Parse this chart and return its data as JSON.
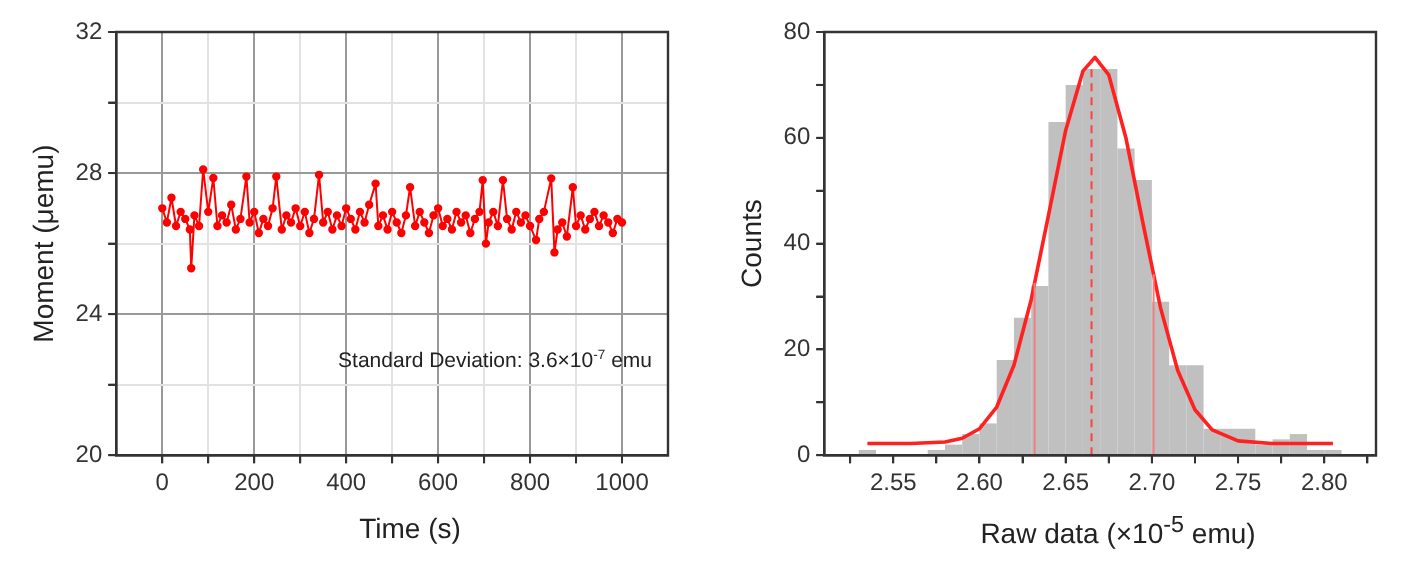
{
  "chart_data": [
    {
      "type": "line",
      "xlabel": "Time (s)",
      "ylabel": "Moment (μemu)",
      "annotations": [
        "Standard Deviation: 3.6×10$^{-7}$ emu"
      ],
      "xlim": [
        -100,
        1100
      ],
      "xticks": [
        0,
        {
          "value": 100,
          "label": null
        },
        200,
        {
          "value": 300,
          "label": null
        },
        400,
        {
          "value": 500,
          "label": null
        },
        600,
        {
          "value": 700,
          "label": null
        },
        800,
        {
          "value": 900,
          "label": null
        },
        1000
      ],
      "ylim": [
        20,
        32
      ],
      "yticks": [
        20,
        {
          "value": 22,
          "label": null
        },
        24,
        {
          "value": 26,
          "label": null
        },
        28,
        {
          "value": 30,
          "label": null
        },
        32
      ],
      "grid": true,
      "legend": false,
      "marker": "circle",
      "line_style": "solid",
      "series": [
        {
          "color": "#ff0000",
          "x": [
            0,
            10,
            20,
            30,
            40,
            50,
            60,
            63,
            70,
            80,
            89,
            100,
            111,
            120,
            130,
            140,
            150,
            160,
            170,
            183,
            190,
            200,
            210,
            220,
            230,
            240,
            248,
            260,
            270,
            280,
            290,
            300,
            310,
            320,
            330,
            341,
            350,
            360,
            370,
            380,
            390,
            400,
            410,
            420,
            430,
            440,
            450,
            464,
            470,
            480,
            490,
            500,
            510,
            520,
            530,
            539,
            550,
            560,
            570,
            580,
            590,
            600,
            610,
            620,
            630,
            640,
            650,
            660,
            670,
            680,
            690,
            697,
            704,
            710,
            720,
            730,
            741,
            750,
            760,
            770,
            780,
            790,
            800,
            813,
            820,
            830,
            846,
            853,
            860,
            870,
            880,
            893,
            900,
            910,
            920,
            930,
            940,
            950,
            960,
            970,
            980,
            990,
            1000
          ],
          "values": [
            27.0,
            26.6,
            27.3,
            26.5,
            26.9,
            26.7,
            26.4,
            25.3,
            26.8,
            26.5,
            28.1,
            26.9,
            27.86,
            26.5,
            26.8,
            26.6,
            27.1,
            26.4,
            26.7,
            27.9,
            26.6,
            26.9,
            26.3,
            26.7,
            26.5,
            27.0,
            27.9,
            26.4,
            26.8,
            26.6,
            27.0,
            26.5,
            26.9,
            26.3,
            26.7,
            27.95,
            26.6,
            26.9,
            26.4,
            26.8,
            26.5,
            27.0,
            26.7,
            26.4,
            26.9,
            26.6,
            27.1,
            27.7,
            26.5,
            26.8,
            26.4,
            26.9,
            26.6,
            26.3,
            26.8,
            27.6,
            26.5,
            26.9,
            26.6,
            26.3,
            26.8,
            27.0,
            26.5,
            26.7,
            26.4,
            26.9,
            26.6,
            26.8,
            26.3,
            26.7,
            26.9,
            27.8,
            26.0,
            26.6,
            26.9,
            26.5,
            27.8,
            26.7,
            26.4,
            26.9,
            26.6,
            26.8,
            26.5,
            26.1,
            26.7,
            26.9,
            27.85,
            25.75,
            26.4,
            26.6,
            26.2,
            27.6,
            26.5,
            26.8,
            26.4,
            26.7,
            26.9,
            26.5,
            26.8,
            26.6,
            26.3,
            26.7,
            26.6
          ]
        }
      ]
    },
    {
      "type": "histogram",
      "xlabel": "Raw data (×10$^{-5}$ emu)",
      "ylabel": "Counts",
      "color": "#c0c0c0",
      "bins": [
        2.53,
        2.54,
        2.55,
        2.56,
        2.57,
        2.58,
        2.59,
        2.6,
        2.61,
        2.62,
        2.63,
        2.64,
        2.65,
        2.66,
        2.67,
        2.68,
        2.69,
        2.7,
        2.71,
        2.72,
        2.73,
        2.74,
        2.75,
        2.76,
        2.77,
        2.78,
        2.79,
        2.8,
        2.81
      ],
      "values": [
        1,
        0,
        0,
        0,
        1,
        2,
        4,
        6,
        18,
        26,
        32,
        63,
        70,
        73,
        73,
        58,
        52,
        29,
        17,
        17,
        5,
        5,
        5,
        2,
        3,
        4,
        1,
        1
      ],
      "xlim": [
        2.51,
        2.83
      ],
      "xticks": [
        {
          "value": 2.525,
          "label": null
        },
        2.55,
        {
          "value": 2.575,
          "label": null
        },
        {
          "value": 2.6,
          "label": "2.60"
        },
        {
          "value": 2.625,
          "label": null
        },
        2.65,
        {
          "value": 2.675,
          "label": null
        },
        {
          "value": 2.7,
          "label": "2.70"
        },
        {
          "value": 2.725,
          "label": null
        },
        2.75,
        {
          "value": 2.775,
          "label": null
        },
        {
          "value": 2.8,
          "label": "2.80"
        },
        {
          "value": 2.825,
          "label": null
        }
      ],
      "ylim": [
        0,
        80
      ],
      "yticks": [
        0,
        {
          "value": 10,
          "label": null
        },
        20,
        {
          "value": 30,
          "label": null
        },
        40,
        {
          "value": 50,
          "label": null
        },
        60,
        {
          "value": 70,
          "label": null
        },
        80
      ],
      "grid": false,
      "legend": false,
      "series": [
        {
          "type": "line",
          "color": "#ff2020",
          "marker": "none",
          "x": [
            2.535,
            2.56,
            2.58,
            2.59,
            2.6,
            2.61,
            2.62,
            2.63,
            2.64,
            2.65,
            2.66,
            2.667,
            2.675,
            2.685,
            2.695,
            2.705,
            2.715,
            2.725,
            2.735,
            2.75,
            2.77,
            2.805
          ],
          "values": [
            2.2,
            2.2,
            2.5,
            3.2,
            5,
            9.1,
            17,
            29.4,
            45.3,
            61.4,
            72.6,
            75.2,
            71.9,
            59.9,
            43.6,
            27.9,
            16,
            8.6,
            4.8,
            2.7,
            2.2,
            2.2
          ]
        }
      ],
      "ref_lines": [
        {
          "axis": "x",
          "value": 2.632,
          "color": "#f08080",
          "line_style": "solid"
        },
        {
          "axis": "x",
          "value": 2.665,
          "color": "#ff4040",
          "line_style": "dashed"
        },
        {
          "axis": "x",
          "value": 2.701,
          "color": "#f08080",
          "line_style": "solid"
        }
      ]
    }
  ]
}
